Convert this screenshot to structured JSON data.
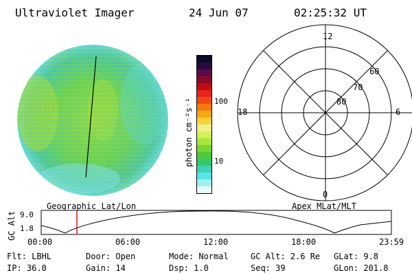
{
  "header": {
    "title": "Ultraviolet Imager",
    "date": "24 Jun 07",
    "time": "02:25:32 UT"
  },
  "colorbar": {
    "unit_label": "photon cm⁻²s⁻¹",
    "ticks": [
      "100",
      "10"
    ],
    "colors": [
      "#0a0a2a",
      "#2a0a3a",
      "#5a0a4a",
      "#8a0a2a",
      "#c00a14",
      "#e6231e",
      "#f04a14",
      "#f57a10",
      "#f8a810",
      "#fad23c",
      "#eef08c",
      "#d4f05a",
      "#a8e63c",
      "#7ad632",
      "#4ec83c",
      "#32c86e",
      "#3cd2b4",
      "#5ae6e6",
      "#a0f0f0",
      "#e6fafa"
    ]
  },
  "polar_grid": {
    "labels": {
      "top": "12",
      "bottom": "0",
      "left": "18",
      "right": "6",
      "ring_60": "60",
      "ring_70": "70",
      "ring_80": "80"
    }
  },
  "captions": {
    "left": "Geographic Lat/Lon",
    "right": "Apex MLat/MLT"
  },
  "gc_alt_plot": {
    "ylabel": "GC Alt",
    "yticks": [
      "9.0",
      "1.8"
    ],
    "xticks": [
      "00:00",
      "06:00",
      "12:00",
      "18:00",
      "23:59"
    ],
    "current_marker_color": "#e00000"
  },
  "footer": {
    "row1": {
      "flt": "Flt: LBHL",
      "door": "Door: Open",
      "mode": "Mode: Normal",
      "gc_alt": "GC Alt: 2.6 Re",
      "glat": "GLat:  9.8"
    },
    "row2": {
      "ip": "IP: 36.0",
      "gain": "Gain: 14",
      "dsp": "Dsp:   1.0",
      "seq": "Seq: 39",
      "glon": "GLon: 201.8"
    }
  }
}
